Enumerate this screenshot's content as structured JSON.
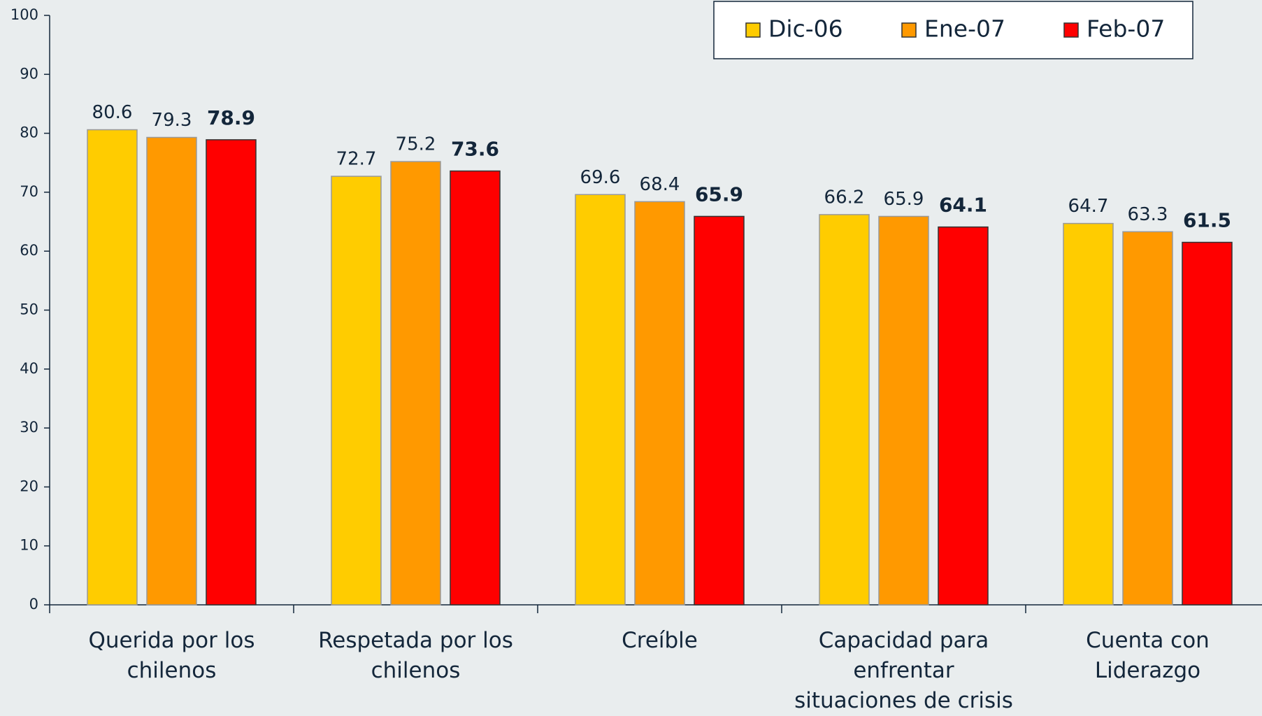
{
  "chart_data": {
    "type": "bar",
    "categories": [
      "Querida por los chilenos",
      "Respetada por los chilenos",
      "Creíble",
      "Capacidad para enfrentar situaciones de crisis",
      "Cuenta con Liderazgo"
    ],
    "series": [
      {
        "name": "Dic-06",
        "color": "#ffcc00",
        "values": [
          80.6,
          72.7,
          69.6,
          66.2,
          64.7
        ]
      },
      {
        "name": "Ene-07",
        "color": "#ff9900",
        "values": [
          79.3,
          75.2,
          68.4,
          65.9,
          63.3
        ]
      },
      {
        "name": "Feb-07",
        "color": "#ff0000",
        "values": [
          78.9,
          73.6,
          65.9,
          64.1,
          61.5
        ],
        "bold_labels": true
      }
    ],
    "ylim": [
      0,
      100
    ],
    "yticks": [
      0,
      10,
      20,
      30,
      40,
      50,
      60,
      70,
      80,
      90,
      100
    ],
    "legend": "top-right"
  }
}
